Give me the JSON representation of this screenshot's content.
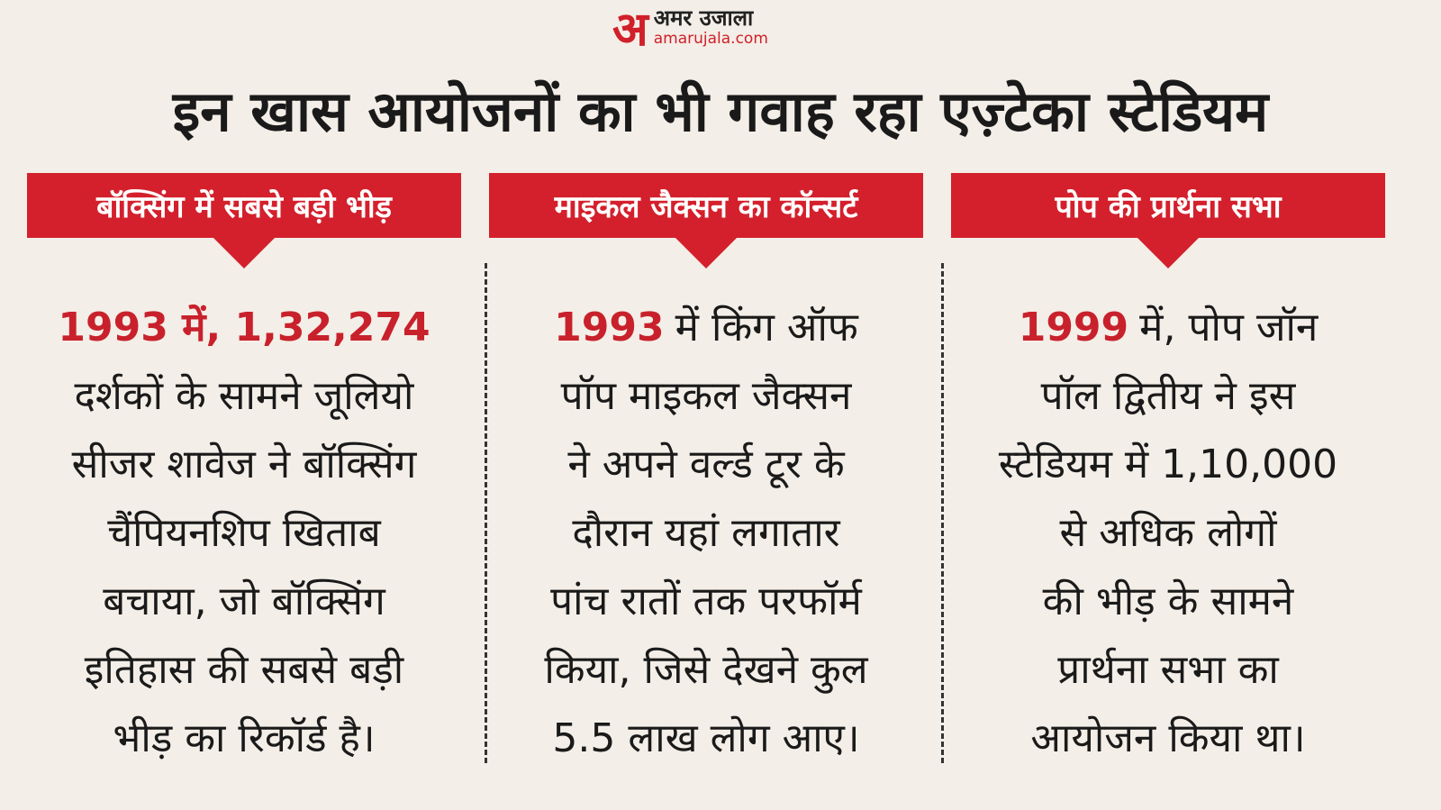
{
  "logo": {
    "mark": "अ",
    "name": "अमर उजाला",
    "url": "amarujala.com"
  },
  "title": "इन खास आयोजनों का भी गवाह रहा एज़्टेका स्टेडियम",
  "columns": [
    {
      "heading": "बॉक्सिंग में सबसे बड़ी भीड़",
      "lines": [
        {
          "highlight": "1993 में, 1,32,274"
        },
        "दर्शकों के सामने जूलियो",
        "सीजर शावेज ने बॉक्सिंग",
        "चैंपियनशिप खिताब",
        "बचाया, जो बॉक्सिंग",
        "इतिहास की सबसे बड़ी",
        "भीड़ का रिकॉर्ड है।"
      ]
    },
    {
      "heading": "माइकल जैक्सन का कॉन्सर्ट",
      "lines": [
        {
          "highlight": "1993",
          "text": "में किंग ऑफ"
        },
        "पॉप माइकल जैक्सन",
        "ने अपने वर्ल्ड टूर के",
        "दौरान यहां लगातार",
        "पांच रातों तक परफॉर्म",
        "किया, जिसे देखने कुल",
        "5.5 लाख लोग आए।"
      ]
    },
    {
      "heading": "पोप की प्रार्थना सभा",
      "lines": [
        {
          "highlight": "1999",
          "text": "में, पोप जॉन"
        },
        "पॉल द्वितीय ने इस",
        "स्टेडियम में 1,10,000",
        "से अधिक लोगों",
        "की भीड़ के सामने",
        "प्रार्थना सभा का",
        "आयोजन किया था।"
      ]
    }
  ]
}
